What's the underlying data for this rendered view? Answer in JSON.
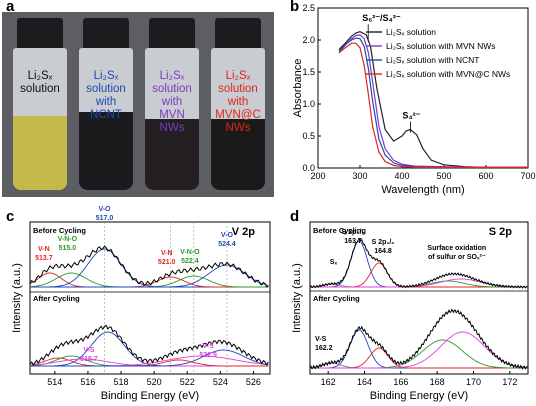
{
  "panels": {
    "a": "a",
    "b": "b",
    "c": "c",
    "d": "d"
  },
  "vials": [
    {
      "lines": [
        "Li₂Sₓ",
        "solution"
      ],
      "color": "#111111",
      "liquid": "#c4b94a",
      "liquid_fraction": 0.52
    },
    {
      "lines": [
        "Li₂Sₓ",
        "solution",
        "with",
        "NCNT"
      ],
      "color": "#1f49b8",
      "liquid": "#1b1b1d",
      "liquid_fraction": 0.55
    },
    {
      "lines": [
        "Li₂Sₓ",
        "solution",
        "with",
        "MVN",
        "NWs"
      ],
      "color": "#7a3cc2",
      "liquid": "#242021",
      "liquid_fraction": 0.5
    },
    {
      "lines": [
        "Li₂Sₓ",
        "solution",
        "with",
        "MVN@C",
        "NWs"
      ],
      "color": "#e0251d",
      "liquid": "#1a1a1a",
      "liquid_fraction": 0.5
    }
  ],
  "chart_data": [
    {
      "panel": "b",
      "type": "line",
      "xlabel": "Wavelength (nm)",
      "ylabel": "Absorbance",
      "xlim": [
        200,
        700
      ],
      "ylim": [
        0,
        2.5
      ],
      "xticks": [
        "200",
        "300",
        "400",
        "500",
        "600",
        "700"
      ],
      "yticks": [
        "0.0",
        "0.5",
        "1.0",
        "1.5",
        "2.0",
        "2.5"
      ],
      "annotations": [
        {
          "text": "S₆²⁻/S₄²⁻",
          "x": 310,
          "y": 2.2
        },
        {
          "text": "S₄²⁻",
          "x": 420,
          "y": 0.68
        }
      ],
      "legend_position": "top-right",
      "series": [
        {
          "name": "Li₂Sₓ solution",
          "color": "#222222",
          "x": [
            250,
            265,
            280,
            290,
            300,
            315,
            325,
            340,
            360,
            380,
            400,
            410,
            420,
            435,
            450,
            470,
            500,
            550,
            600,
            700
          ],
          "y": [
            1.85,
            1.95,
            2.06,
            2.11,
            2.13,
            2.08,
            1.9,
            1.25,
            0.6,
            0.42,
            0.5,
            0.58,
            0.6,
            0.52,
            0.3,
            0.12,
            0.05,
            0.02,
            0.01,
            0.01
          ]
        },
        {
          "name": "Li₂Sₓ solution with MVN NWs",
          "color": "#7a3cc2",
          "x": [
            250,
            265,
            280,
            290,
            300,
            310,
            320,
            330,
            345,
            360,
            380,
            400,
            430,
            500,
            600,
            700
          ],
          "y": [
            1.8,
            1.92,
            2.02,
            2.07,
            2.08,
            2.02,
            1.8,
            1.35,
            0.65,
            0.3,
            0.12,
            0.06,
            0.03,
            0.02,
            0.01,
            0.01
          ]
        },
        {
          "name": "Li₂Sₓ solution with NCNT",
          "color": "#1f49b8",
          "x": [
            250,
            265,
            280,
            290,
            300,
            310,
            320,
            330,
            345,
            360,
            380,
            400,
            430,
            500,
            600,
            700
          ],
          "y": [
            1.82,
            1.93,
            2.0,
            2.03,
            2.02,
            1.9,
            1.55,
            1.05,
            0.45,
            0.2,
            0.08,
            0.04,
            0.02,
            0.01,
            0.01,
            0.01
          ]
        },
        {
          "name": "Li₂Sₓ solution with MVN@C NWs",
          "color": "#e0251d",
          "x": [
            250,
            265,
            280,
            290,
            300,
            310,
            320,
            330,
            345,
            360,
            380,
            400,
            430,
            500,
            600,
            700
          ],
          "y": [
            1.8,
            1.88,
            1.95,
            1.95,
            1.88,
            1.6,
            1.15,
            0.65,
            0.25,
            0.1,
            0.04,
            0.02,
            0.01,
            0.01,
            0.01,
            0.01
          ]
        }
      ]
    },
    {
      "panel": "c",
      "type": "line",
      "title": "V 2p",
      "xlabel": "Binding Energy (eV)",
      "ylabel": "Intensity (a.u.)",
      "xlim": [
        512.5,
        527
      ],
      "xticks": [
        "514",
        "516",
        "518",
        "520",
        "522",
        "524",
        "526"
      ],
      "reference_lines": [
        517.0,
        521.0,
        522.4,
        524.4
      ],
      "sections": [
        {
          "label": "Before Cycling",
          "peaks": [
            {
              "label": [
                "V-N",
                "513.7"
              ],
              "center": 513.7,
              "color": "#e0251d"
            },
            {
              "label": [
                "V-N-O",
                "515.0"
              ],
              "center": 515.0,
              "color": "#2a9a2a"
            },
            {
              "label": [
                "V-O",
                "517.0"
              ],
              "center": 517.0,
              "color": "#1f49b8"
            },
            {
              "label": [
                "V-N",
                "521.0"
              ],
              "center": 521.0,
              "color": "#e0251d"
            },
            {
              "label": [
                "V-N-O",
                "522.4"
              ],
              "center": 522.4,
              "color": "#2a9a2a"
            },
            {
              "label": [
                "V-O",
                "524.4"
              ],
              "center": 524.4,
              "color": "#1f49b8"
            }
          ]
        },
        {
          "label": "After Cycling",
          "peaks": [
            {
              "label": [
                "V-S",
                "515.7"
              ],
              "center": 515.7,
              "color": "#e040e0"
            },
            {
              "label": [
                "V-S",
                "522.9"
              ],
              "center": 522.9,
              "color": "#e040e0"
            }
          ]
        }
      ]
    },
    {
      "panel": "d",
      "type": "line",
      "title": "S 2p",
      "xlabel": "Binding Energy (eV)",
      "ylabel": "Intensity (a.u.)",
      "xlim": [
        161,
        173
      ],
      "xticks": [
        "162",
        "164",
        "166",
        "168",
        "170",
        "172"
      ],
      "sections": [
        {
          "label": "Before Cycling",
          "peaks": [
            {
              "label": [
                "Sₓ"
              ],
              "center": 162.2
            },
            {
              "label": [
                "S 2p₃/₂",
                "163.7"
              ],
              "center": 163.7,
              "color": "#1f49b8"
            },
            {
              "label": [
                "S 2p₁/₂",
                "164.8"
              ],
              "center": 164.8,
              "color": "#e0251d"
            },
            {
              "label": [
                "Surface oxidation",
                "of sulfur or SOₓ²⁻"
              ],
              "center": 169.3
            }
          ]
        },
        {
          "label": "After Cycling",
          "peaks": [
            {
              "label": [
                "V-S",
                "162.2"
              ],
              "center": 162.2
            }
          ]
        }
      ]
    }
  ]
}
